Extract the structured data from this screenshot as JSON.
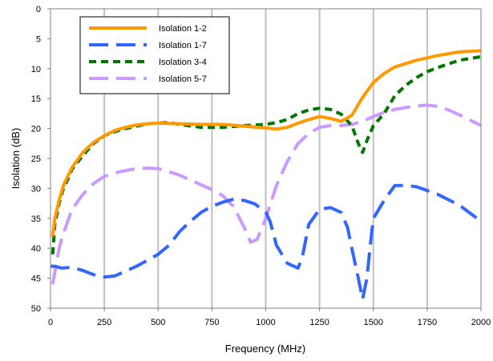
{
  "chart_data": {
    "type": "line",
    "title": "",
    "xlabel": "Frequency (MHz)",
    "ylabel": "Isolation (dB)",
    "xlim": [
      0,
      2000
    ],
    "ylim": [
      0,
      50
    ],
    "y_axis_inverted": true,
    "x_ticks": [
      0,
      250,
      500,
      750,
      1000,
      1250,
      1500,
      1750,
      2000
    ],
    "y_ticks": [
      0,
      5,
      10,
      15,
      20,
      25,
      30,
      35,
      40,
      45,
      50
    ],
    "grid": "vertical",
    "legend_position": "top-left",
    "series": [
      {
        "name": "Isolation 1-2",
        "color": "#FF9900",
        "style": "solid",
        "x": [
          10,
          20,
          40,
          60,
          80,
          100,
          150,
          200,
          250,
          300,
          350,
          400,
          450,
          500,
          600,
          700,
          800,
          900,
          1000,
          1050,
          1100,
          1150,
          1200,
          1250,
          1300,
          1350,
          1400,
          1450,
          1500,
          1550,
          1600,
          1700,
          1800,
          1900,
          2000
        ],
        "y": [
          38,
          35,
          32,
          29.5,
          28,
          26.5,
          24,
          22.3,
          21.2,
          20.3,
          19.8,
          19.4,
          19.2,
          19.1,
          19.2,
          19.3,
          19.3,
          19.6,
          19.9,
          20.1,
          19.8,
          19.1,
          18.5,
          18.0,
          18.3,
          18.8,
          17.8,
          14.8,
          12.3,
          10.8,
          9.7,
          8.6,
          7.8,
          7.2,
          7.0
        ]
      },
      {
        "name": "Isolation 1-7",
        "color": "#3366FF",
        "style": "long-dash",
        "x": [
          0,
          20,
          50,
          100,
          150,
          200,
          250,
          300,
          350,
          400,
          450,
          500,
          550,
          600,
          650,
          700,
          750,
          800,
          850,
          900,
          950,
          1000,
          1020,
          1050,
          1100,
          1150,
          1170,
          1200,
          1250,
          1300,
          1350,
          1380,
          1400,
          1430,
          1450,
          1470,
          1490,
          1500,
          1550,
          1600,
          1650,
          1700,
          1800,
          1900,
          2000
        ],
        "y": [
          43,
          43,
          43.3,
          43.2,
          43.7,
          44.4,
          44.8,
          44.6,
          43.8,
          43.0,
          42.0,
          41.0,
          39.5,
          37.2,
          35.5,
          34.0,
          33.0,
          32.3,
          31.8,
          32.0,
          32.6,
          34.0,
          35.5,
          39.5,
          42.5,
          43.3,
          41.5,
          36.0,
          33.5,
          33.2,
          34.0,
          36.5,
          40.0,
          45.0,
          48.5,
          45.0,
          38.0,
          35.0,
          32.0,
          29.5,
          29.5,
          29.7,
          31.0,
          32.8,
          35.5
        ]
      },
      {
        "name": "Isolation 3-4",
        "color": "#007700",
        "style": "short-dash",
        "x": [
          10,
          20,
          40,
          60,
          80,
          100,
          150,
          200,
          250,
          300,
          350,
          400,
          450,
          500,
          550,
          600,
          700,
          800,
          900,
          1000,
          1050,
          1100,
          1150,
          1200,
          1250,
          1300,
          1350,
          1400,
          1430,
          1450,
          1470,
          1500,
          1550,
          1600,
          1650,
          1700,
          1750,
          1800,
          1900,
          2000
        ],
        "y": [
          41,
          36,
          32.5,
          30,
          28.5,
          26.8,
          24.5,
          22.5,
          21.2,
          20.5,
          20.0,
          19.6,
          19.2,
          19.1,
          19.0,
          19.3,
          19.8,
          19.8,
          19.5,
          19.3,
          19.0,
          18.5,
          17.5,
          16.9,
          16.6,
          16.8,
          17.6,
          19.5,
          22.5,
          24.0,
          22.0,
          19.5,
          17.5,
          14.5,
          12.8,
          11.5,
          10.5,
          9.8,
          8.6,
          8.0
        ]
      },
      {
        "name": "Isolation 5-7",
        "color": "#CC99FF",
        "style": "long-dash",
        "x": [
          10,
          20,
          40,
          60,
          80,
          100,
          150,
          200,
          250,
          300,
          350,
          400,
          450,
          500,
          550,
          600,
          650,
          700,
          750,
          800,
          850,
          900,
          930,
          960,
          1000,
          1050,
          1100,
          1150,
          1200,
          1250,
          1300,
          1350,
          1400,
          1450,
          1500,
          1550,
          1600,
          1650,
          1700,
          1750,
          1800,
          1850,
          1900,
          1950,
          2000
        ],
        "y": [
          46,
          44,
          40,
          37.5,
          35.5,
          33.5,
          31.0,
          29.2,
          28.0,
          27.4,
          27.0,
          26.7,
          26.6,
          26.7,
          27.2,
          27.8,
          28.6,
          29.4,
          30.2,
          31.2,
          33.0,
          36.5,
          39.0,
          38.5,
          35.0,
          29.5,
          25.5,
          22.5,
          20.8,
          19.8,
          19.5,
          19.5,
          19.3,
          18.8,
          18.0,
          17.3,
          16.8,
          16.5,
          16.2,
          16.1,
          16.3,
          16.9,
          17.7,
          18.6,
          19.5
        ]
      }
    ]
  }
}
